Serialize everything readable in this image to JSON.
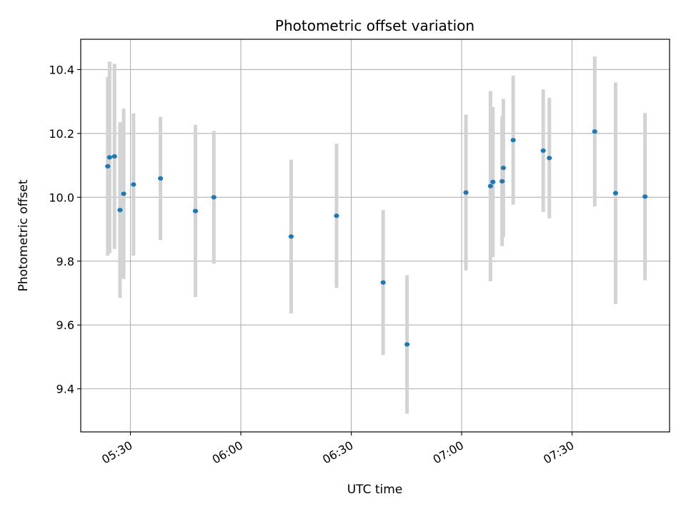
{
  "chart_data": {
    "type": "scatter",
    "title": "Photometric offset variation",
    "xlabel": "UTC time",
    "ylabel": "Photometric offset",
    "xlim": [
      "05:16:30",
      "07:56:30"
    ],
    "ylim": [
      9.265,
      10.495
    ],
    "xticks": [
      "05:30",
      "06:00",
      "06:30",
      "07:00",
      "07:30"
    ],
    "yticks": [
      "9.4",
      "9.6",
      "9.8",
      "10.0",
      "10.2",
      "10.4"
    ],
    "grid": true,
    "colors": {
      "marker": "#1f77b4",
      "errorbar": "#d3d3d3",
      "grid": "#b0b0b0"
    },
    "points": [
      {
        "t": "05:23:50",
        "y": 10.097,
        "err": 0.28
      },
      {
        "t": "05:24:20",
        "y": 10.125,
        "err": 0.3
      },
      {
        "t": "05:25:40",
        "y": 10.128,
        "err": 0.29
      },
      {
        "t": "05:27:10",
        "y": 9.96,
        "err": 0.275
      },
      {
        "t": "05:28:10",
        "y": 10.011,
        "err": 0.267
      },
      {
        "t": "05:30:50",
        "y": 10.04,
        "err": 0.223
      },
      {
        "t": "05:38:10",
        "y": 10.059,
        "err": 0.193
      },
      {
        "t": "05:47:40",
        "y": 9.957,
        "err": 0.27
      },
      {
        "t": "05:52:40",
        "y": 10.0,
        "err": 0.208
      },
      {
        "t": "06:13:40",
        "y": 9.877,
        "err": 0.241
      },
      {
        "t": "06:26:00",
        "y": 9.942,
        "err": 0.226
      },
      {
        "t": "06:38:40",
        "y": 9.733,
        "err": 0.227
      },
      {
        "t": "06:45:10",
        "y": 9.539,
        "err": 0.217
      },
      {
        "t": "07:01:10",
        "y": 10.015,
        "err": 0.244
      },
      {
        "t": "07:07:50",
        "y": 10.035,
        "err": 0.298
      },
      {
        "t": "07:08:30",
        "y": 10.048,
        "err": 0.235
      },
      {
        "t": "07:11:00",
        "y": 10.05,
        "err": 0.203
      },
      {
        "t": "07:11:20",
        "y": 10.092,
        "err": 0.216
      },
      {
        "t": "07:14:00",
        "y": 10.179,
        "err": 0.202
      },
      {
        "t": "07:22:10",
        "y": 10.146,
        "err": 0.192
      },
      {
        "t": "07:23:50",
        "y": 10.123,
        "err": 0.189
      },
      {
        "t": "07:36:10",
        "y": 10.206,
        "err": 0.235
      },
      {
        "t": "07:41:50",
        "y": 10.013,
        "err": 0.347
      },
      {
        "t": "07:49:50",
        "y": 10.002,
        "err": 0.262
      }
    ]
  }
}
